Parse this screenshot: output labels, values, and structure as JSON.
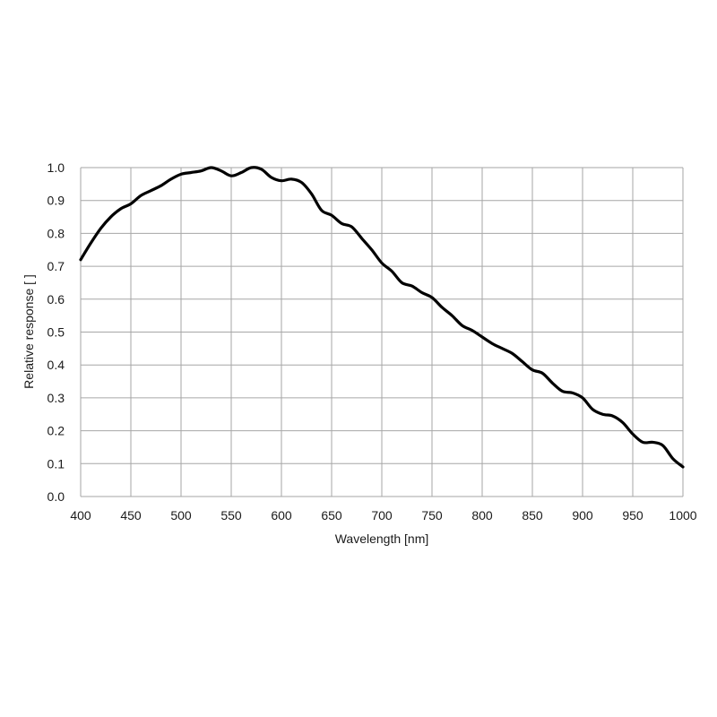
{
  "chart_data": {
    "type": "line",
    "title": "",
    "xlabel": "Wavelength [nm]",
    "ylabel": "Relative response [ ]",
    "xlim": [
      400,
      1000
    ],
    "ylim": [
      0.0,
      1.0
    ],
    "xticks": [
      400,
      450,
      500,
      550,
      600,
      650,
      700,
      750,
      800,
      850,
      900,
      950,
      1000
    ],
    "yticks": [
      0.0,
      0.1,
      0.2,
      0.3,
      0.4,
      0.5,
      0.6,
      0.7,
      0.8,
      0.9,
      1.0
    ],
    "ytick_labels": [
      "0.0",
      "0.1",
      "0.2",
      "0.3",
      "0.4",
      "0.5",
      "0.6",
      "0.7",
      "0.8",
      "0.9",
      "1.0"
    ],
    "xtick_labels": [
      "400",
      "450",
      "500",
      "550",
      "600",
      "650",
      "700",
      "750",
      "800",
      "850",
      "900",
      "950",
      "1000"
    ],
    "grid": true,
    "legend": "none",
    "colors": {
      "line": "#000000",
      "grid": "#a6a6a6",
      "text": "#1a1a1a"
    },
    "series": [
      {
        "x": [
          400,
          410,
          420,
          430,
          440,
          450,
          460,
          470,
          480,
          490,
          500,
          510,
          520,
          530,
          540,
          550,
          560,
          570,
          580,
          590,
          600,
          610,
          620,
          630,
          640,
          650,
          660,
          670,
          680,
          690,
          700,
          710,
          720,
          730,
          740,
          750,
          760,
          770,
          780,
          790,
          800,
          810,
          820,
          830,
          840,
          850,
          860,
          870,
          880,
          890,
          900,
          910,
          920,
          930,
          940,
          950,
          960,
          970,
          980,
          990,
          1000
        ],
        "values": [
          0.72,
          0.77,
          0.815,
          0.85,
          0.875,
          0.89,
          0.915,
          0.93,
          0.945,
          0.965,
          0.98,
          0.985,
          0.99,
          1.0,
          0.99,
          0.975,
          0.985,
          1.0,
          0.995,
          0.97,
          0.96,
          0.965,
          0.955,
          0.92,
          0.87,
          0.855,
          0.83,
          0.82,
          0.785,
          0.75,
          0.71,
          0.685,
          0.65,
          0.64,
          0.62,
          0.605,
          0.575,
          0.55,
          0.52,
          0.505,
          0.485,
          0.465,
          0.45,
          0.435,
          0.41,
          0.385,
          0.375,
          0.345,
          0.32,
          0.315,
          0.3,
          0.265,
          0.25,
          0.245,
          0.225,
          0.19,
          0.165,
          0.165,
          0.155,
          0.115,
          0.09
        ]
      }
    ]
  }
}
